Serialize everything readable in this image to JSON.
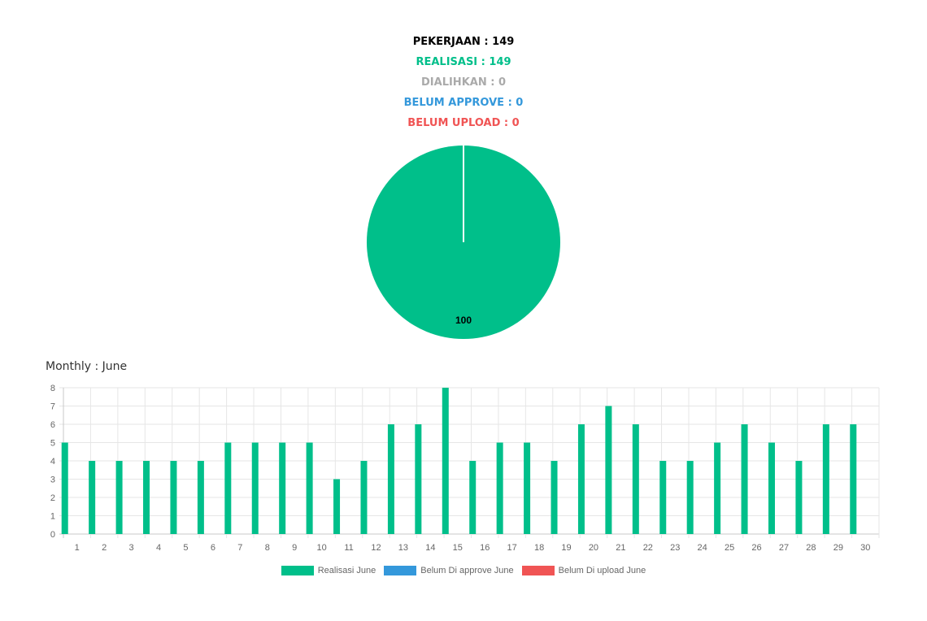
{
  "summary": {
    "pekerjaan": "PEKERJAAN : 149",
    "realisasi": "REALISASI : 149",
    "dialihkan": "DIALIHKAN : 0",
    "belum_approve": "BELUM APPROVE : 0",
    "belum_upload": "BELUM UPLOAD : 0"
  },
  "colors": {
    "pekerjaan": "#000000",
    "realisasi": "#00bf8a",
    "dialihkan": "#aaaaaa",
    "belum_approve": "#3498db",
    "belum_upload": "#f05454"
  },
  "monthly": {
    "title": "Monthly : June"
  },
  "chart_data": [
    {
      "type": "pie",
      "slices": [
        {
          "label": "Realisasi",
          "value": 100,
          "color": "#00bf8a"
        }
      ],
      "data_label": "100"
    },
    {
      "type": "bar",
      "categories": [
        "1",
        "2",
        "3",
        "4",
        "5",
        "6",
        "7",
        "8",
        "9",
        "10",
        "11",
        "12",
        "13",
        "14",
        "15",
        "16",
        "17",
        "18",
        "19",
        "20",
        "21",
        "22",
        "23",
        "24",
        "25",
        "26",
        "27",
        "28",
        "29",
        "30"
      ],
      "series": [
        {
          "name": "Realisasi June",
          "color": "#00bf8a",
          "values": [
            5,
            4,
            4,
            4,
            4,
            4,
            5,
            5,
            5,
            5,
            3,
            4,
            6,
            6,
            8,
            4,
            5,
            5,
            4,
            6,
            7,
            6,
            4,
            4,
            5,
            6,
            5,
            4,
            6,
            6
          ]
        },
        {
          "name": "Belum Di approve June",
          "color": "#3498db",
          "values": [
            0,
            0,
            0,
            0,
            0,
            0,
            0,
            0,
            0,
            0,
            0,
            0,
            0,
            0,
            0,
            0,
            0,
            0,
            0,
            0,
            0,
            0,
            0,
            0,
            0,
            0,
            0,
            0,
            0,
            0
          ]
        },
        {
          "name": "Belum Di upload June",
          "color": "#f05454",
          "values": [
            0,
            0,
            0,
            0,
            0,
            0,
            0,
            0,
            0,
            0,
            0,
            0,
            0,
            0,
            0,
            0,
            0,
            0,
            0,
            0,
            0,
            0,
            0,
            0,
            0,
            0,
            0,
            0,
            0,
            0
          ]
        }
      ],
      "yticks": [
        "0",
        "1",
        "2",
        "3",
        "4",
        "5",
        "6",
        "7",
        "8"
      ],
      "ylim": [
        0,
        8
      ],
      "grid": true,
      "legend": "bottom"
    }
  ]
}
